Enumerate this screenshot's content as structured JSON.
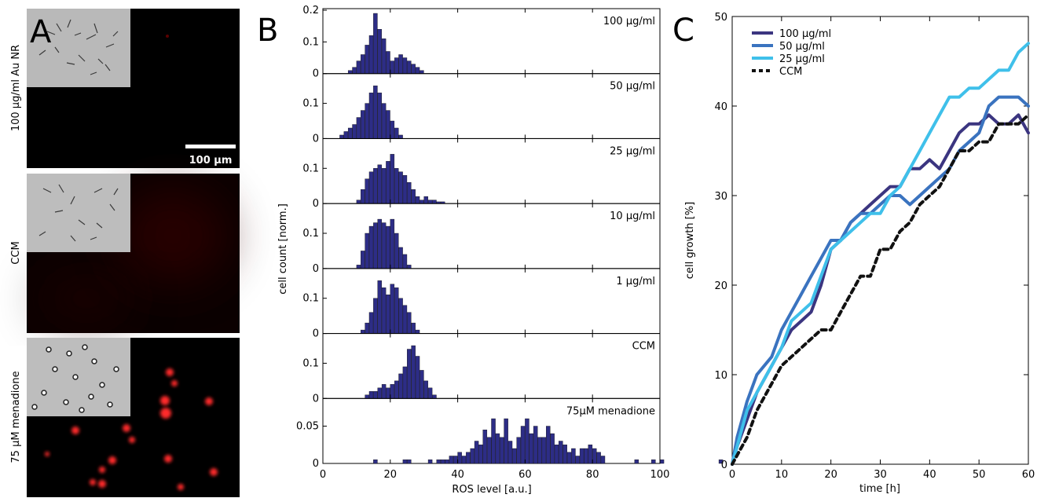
{
  "colors": {
    "bar_fill": "#2d2d86",
    "line_100": "#3b3580",
    "line_50": "#3a73bf",
    "line_25": "#3fc0ea",
    "line_ccm": "#111111",
    "fluor_red": "#ff2a2a"
  },
  "chart_data": [
    {
      "panel": "A",
      "type": "image-panels",
      "label": "A",
      "rows": [
        {
          "label": "100 µg/ml Au NR"
        },
        {
          "label": "CCM"
        },
        {
          "label": "75 µM menadione"
        }
      ],
      "scale_bar": "100 µm"
    },
    {
      "panel": "B",
      "type": "bar",
      "label": "B",
      "xlabel": "ROS level [a.u.]",
      "ylabel": "cell count [norm.]",
      "xlim": [
        0,
        100
      ],
      "xticks": [
        "0",
        "20",
        "40",
        "60",
        "80",
        "100"
      ],
      "bin_start": 5,
      "bin_width": 1.25,
      "subplots": [
        {
          "name": "100 µg/ml",
          "ylim": [
            0,
            0.2
          ],
          "yticks": [
            "0",
            "0.1",
            "0.2"
          ],
          "values": [
            0,
            0,
            0.01,
            0.02,
            0.04,
            0.06,
            0.09,
            0.12,
            0.19,
            0.14,
            0.11,
            0.07,
            0.04,
            0.05,
            0.06,
            0.05,
            0.04,
            0.03,
            0.02,
            0.01
          ]
        },
        {
          "name": "50 µg/ml",
          "ylim": [
            0,
            0.18
          ],
          "yticks": [
            "0",
            "0.1"
          ],
          "values": [
            0.01,
            0.02,
            0.03,
            0.04,
            0.06,
            0.08,
            0.1,
            0.13,
            0.15,
            0.13,
            0.1,
            0.08,
            0.05,
            0.03,
            0.01
          ]
        },
        {
          "name": "25 µg/ml",
          "ylim": [
            0,
            0.18
          ],
          "yticks": [
            "0",
            "0.1"
          ],
          "values": [
            0,
            0,
            0,
            0,
            0.01,
            0.04,
            0.07,
            0.09,
            0.1,
            0.11,
            0.1,
            0.12,
            0.14,
            0.1,
            0.09,
            0.08,
            0.06,
            0.04,
            0.02,
            0.01,
            0.02,
            0.01,
            0.01,
            0.005,
            0.005
          ]
        },
        {
          "name": "10 µg/ml",
          "ylim": [
            0,
            0.18
          ],
          "yticks": [
            "0",
            "0.1"
          ],
          "values": [
            0,
            0,
            0,
            0,
            0.01,
            0.05,
            0.1,
            0.12,
            0.13,
            0.14,
            0.13,
            0.12,
            0.14,
            0.1,
            0.06,
            0.04,
            0.01
          ]
        },
        {
          "name": "1 µg/ml",
          "ylim": [
            0,
            0.18
          ],
          "yticks": [
            "0",
            "0.1"
          ],
          "values": [
            0,
            0,
            0,
            0,
            0,
            0.01,
            0.03,
            0.06,
            0.1,
            0.15,
            0.13,
            0.11,
            0.14,
            0.13,
            0.1,
            0.08,
            0.06,
            0.03,
            0.01
          ]
        },
        {
          "name": "CCM",
          "ylim": [
            0,
            0.18
          ],
          "yticks": [
            "0",
            "0.1"
          ],
          "values": [
            0,
            0,
            0,
            0,
            0,
            0,
            0.01,
            0.02,
            0.02,
            0.03,
            0.04,
            0.03,
            0.04,
            0.05,
            0.07,
            0.09,
            0.14,
            0.15,
            0.12,
            0.08,
            0.05,
            0.03,
            0.01
          ]
        },
        {
          "name": "75µM menadione",
          "ylim": [
            0,
            0.085
          ],
          "yticks": [
            "0",
            "0.05"
          ],
          "values": [
            0,
            0,
            0,
            0,
            0,
            0,
            0,
            0,
            0.005,
            0,
            0,
            0,
            0,
            0,
            0,
            0.005,
            0.005,
            0,
            0,
            0,
            0,
            0.005,
            0,
            0.005,
            0.005,
            0.005,
            0.01,
            0.01,
            0.015,
            0.01,
            0.015,
            0.02,
            0.03,
            0.025,
            0.045,
            0.035,
            0.06,
            0.04,
            0.035,
            0.06,
            0.03,
            0.02,
            0.035,
            0.05,
            0.06,
            0.04,
            0.05,
            0.035,
            0.035,
            0.05,
            0.04,
            0.025,
            0.03,
            0.025,
            0.015,
            0.02,
            0.01,
            0.02,
            0.02,
            0.025,
            0.02,
            0.015,
            0.01,
            0,
            0,
            0,
            0,
            0,
            0,
            0,
            0.005,
            0,
            0,
            0,
            0.005,
            0,
            0.005,
            0,
            0,
            0,
            0,
            0,
            0,
            0,
            0,
            0,
            0,
            0,
            0,
            0,
            0.005,
            0
          ]
        }
      ]
    },
    {
      "panel": "C",
      "type": "line",
      "label": "C",
      "xlabel": "time [h]",
      "ylabel": "cell growth [%]",
      "xlim": [
        0,
        60
      ],
      "ylim": [
        0,
        50
      ],
      "xticks": [
        "0",
        "10",
        "20",
        "30",
        "40",
        "50",
        "60"
      ],
      "yticks": [
        "0",
        "10",
        "20",
        "30",
        "40",
        "50"
      ],
      "legend_position": "top-left",
      "series": [
        {
          "name": "100 µg/ml",
          "x": [
            0,
            1,
            3,
            5,
            8,
            10,
            12,
            14,
            16,
            18,
            20,
            22,
            24,
            26,
            28,
            30,
            32,
            34,
            36,
            38,
            40,
            42,
            44,
            46,
            48,
            50,
            52,
            54,
            56,
            58,
            60
          ],
          "y": [
            0,
            2,
            5,
            8,
            11,
            13,
            15,
            16,
            17,
            20,
            24,
            25,
            27,
            28,
            29,
            30,
            31,
            31,
            33,
            33,
            34,
            33,
            35,
            37,
            38,
            38,
            39,
            38,
            38,
            39,
            37
          ]
        },
        {
          "name": "50 µg/ml",
          "x": [
            0,
            1,
            3,
            5,
            8,
            10,
            12,
            14,
            16,
            18,
            20,
            22,
            24,
            26,
            28,
            30,
            32,
            34,
            36,
            38,
            40,
            42,
            44,
            46,
            48,
            50,
            52,
            54,
            56,
            58,
            60
          ],
          "y": [
            0,
            3,
            7,
            10,
            12,
            15,
            17,
            19,
            21,
            23,
            25,
            25,
            27,
            28,
            28,
            29,
            30,
            30,
            29,
            30,
            31,
            32,
            33,
            35,
            36,
            37,
            40,
            41,
            41,
            41,
            40
          ]
        },
        {
          "name": "25 µg/ml",
          "x": [
            0,
            1,
            3,
            5,
            8,
            10,
            12,
            14,
            16,
            18,
            20,
            22,
            24,
            26,
            28,
            30,
            32,
            34,
            36,
            38,
            40,
            42,
            44,
            46,
            48,
            50,
            52,
            54,
            56,
            58,
            60
          ],
          "y": [
            0,
            2,
            6,
            8,
            11,
            13,
            16,
            17,
            18,
            21,
            24,
            25,
            26,
            27,
            28,
            28,
            30,
            31,
            33,
            35,
            37,
            39,
            41,
            41,
            42,
            42,
            43,
            44,
            44,
            46,
            47
          ]
        },
        {
          "name": "CCM",
          "dashed": true,
          "x": [
            0,
            1,
            3,
            5,
            8,
            10,
            12,
            14,
            16,
            18,
            20,
            22,
            24,
            26,
            28,
            30,
            32,
            34,
            36,
            38,
            40,
            42,
            44,
            46,
            48,
            50,
            52,
            54,
            56,
            58,
            60
          ],
          "y": [
            0,
            1,
            3,
            6,
            9,
            11,
            12,
            13,
            14,
            15,
            15,
            17,
            19,
            21,
            21,
            24,
            24,
            26,
            27,
            29,
            30,
            31,
            33,
            35,
            35,
            36,
            36,
            38,
            38,
            38,
            39
          ]
        }
      ]
    }
  ]
}
